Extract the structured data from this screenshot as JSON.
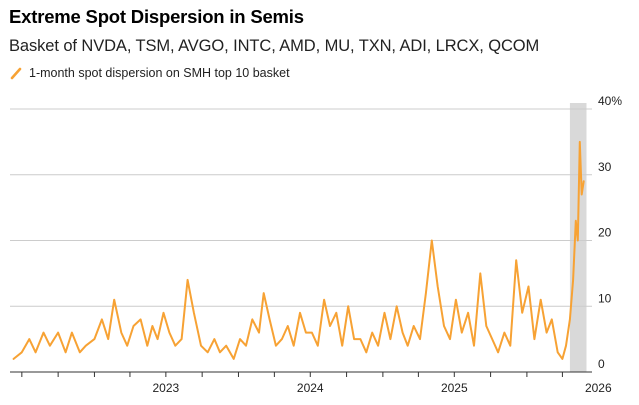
{
  "title": "Extreme Spot Dispersion in Semis",
  "subtitle": "Basket of NVDA, TSM, AVGO, INTC, AMD, MU, TXN, ADI, LRCX, QCOM",
  "legend": {
    "series_label": "1-month spot dispersion on SMH top 10 basket",
    "color": "#f7a234"
  },
  "colors": {
    "series": "#f7a234",
    "grid": "#cccccc",
    "shade": "#d9d9d9",
    "axis": "#333333"
  },
  "chart_data": {
    "type": "line",
    "title": "Extreme Spot Dispersion in Semis",
    "subtitle": "Basket of NVDA, TSM, AVGO, INTC, AMD, MU, TXN, ADI, LRCX, QCOM",
    "xlabel": "",
    "ylabel": "",
    "ylim": [
      0,
      40
    ],
    "y_ticks": [
      0,
      10,
      20,
      30,
      40
    ],
    "y_tick_labels": [
      "0",
      "10",
      "20",
      "30",
      "40%"
    ],
    "y_axis_side": "right",
    "x_tick_labels": [
      "2023",
      "2024",
      "2025",
      "2026"
    ],
    "xlim": [
      "2022-06-01",
      "2026-06-15"
    ],
    "grid": "horizontal",
    "legend_position": "top-left",
    "shaded_region": {
      "x_start": "2026-04-20",
      "x_end": "2026-06-01"
    },
    "series": [
      {
        "name": "1-month spot dispersion on SMH top 10 basket",
        "x": [
          "2022-06-10",
          "2022-07-01",
          "2022-07-20",
          "2022-08-05",
          "2022-08-25",
          "2022-09-10",
          "2022-10-01",
          "2022-10-20",
          "2022-11-05",
          "2022-11-25",
          "2022-12-10",
          "2023-01-01",
          "2023-01-20",
          "2023-02-05",
          "2023-02-20",
          "2023-03-10",
          "2023-03-25",
          "2023-04-10",
          "2023-04-28",
          "2023-05-15",
          "2023-05-28",
          "2023-06-10",
          "2023-06-25",
          "2023-07-10",
          "2023-07-25",
          "2023-08-10",
          "2023-08-25",
          "2023-09-10",
          "2023-09-28",
          "2023-10-15",
          "2023-11-01",
          "2023-11-15",
          "2023-12-01",
          "2023-12-20",
          "2024-01-05",
          "2024-01-20",
          "2024-02-05",
          "2024-02-22",
          "2024-03-05",
          "2024-03-20",
          "2024-04-05",
          "2024-04-20",
          "2024-05-05",
          "2024-05-20",
          "2024-06-05",
          "2024-06-20",
          "2024-07-05",
          "2024-07-20",
          "2024-08-05",
          "2024-08-20",
          "2024-09-05",
          "2024-09-20",
          "2024-10-05",
          "2024-10-20",
          "2024-11-05",
          "2024-11-20",
          "2024-12-05",
          "2024-12-20",
          "2025-01-05",
          "2025-01-20",
          "2025-02-05",
          "2025-02-20",
          "2025-03-05",
          "2025-03-20",
          "2025-04-05",
          "2025-04-20",
          "2025-05-05",
          "2025-05-20",
          "2025-06-05",
          "2025-06-20",
          "2025-07-05",
          "2025-07-20",
          "2025-08-05",
          "2025-08-20",
          "2025-09-05",
          "2025-09-20",
          "2025-10-05",
          "2025-10-20",
          "2025-11-05",
          "2025-11-20",
          "2025-12-05",
          "2025-12-20",
          "2026-01-05",
          "2026-01-20",
          "2026-02-05",
          "2026-02-20",
          "2026-03-05",
          "2026-03-20",
          "2026-04-01",
          "2026-04-10",
          "2026-04-20",
          "2026-04-28",
          "2026-05-05",
          "2026-05-10",
          "2026-05-15",
          "2026-05-20",
          "2026-05-25"
        ],
        "values": [
          2,
          3,
          5,
          3,
          6,
          4,
          6,
          3,
          6,
          3,
          4,
          5,
          8,
          5,
          11,
          6,
          4,
          7,
          8,
          4,
          7,
          5,
          9,
          6,
          4,
          5,
          14,
          9,
          4,
          3,
          5,
          3,
          4,
          2,
          5,
          4,
          8,
          6,
          12,
          8,
          4,
          5,
          7,
          4,
          9,
          6,
          6,
          4,
          11,
          7,
          9,
          4,
          10,
          5,
          5,
          3,
          6,
          4,
          9,
          5,
          10,
          6,
          4,
          7,
          5,
          12,
          20,
          13,
          7,
          5,
          11,
          6,
          9,
          4,
          15,
          7,
          5,
          3,
          6,
          4,
          17,
          9,
          13,
          5,
          11,
          6,
          8,
          3,
          2,
          4,
          8,
          14,
          23,
          20,
          35,
          27,
          29
        ]
      }
    ]
  }
}
